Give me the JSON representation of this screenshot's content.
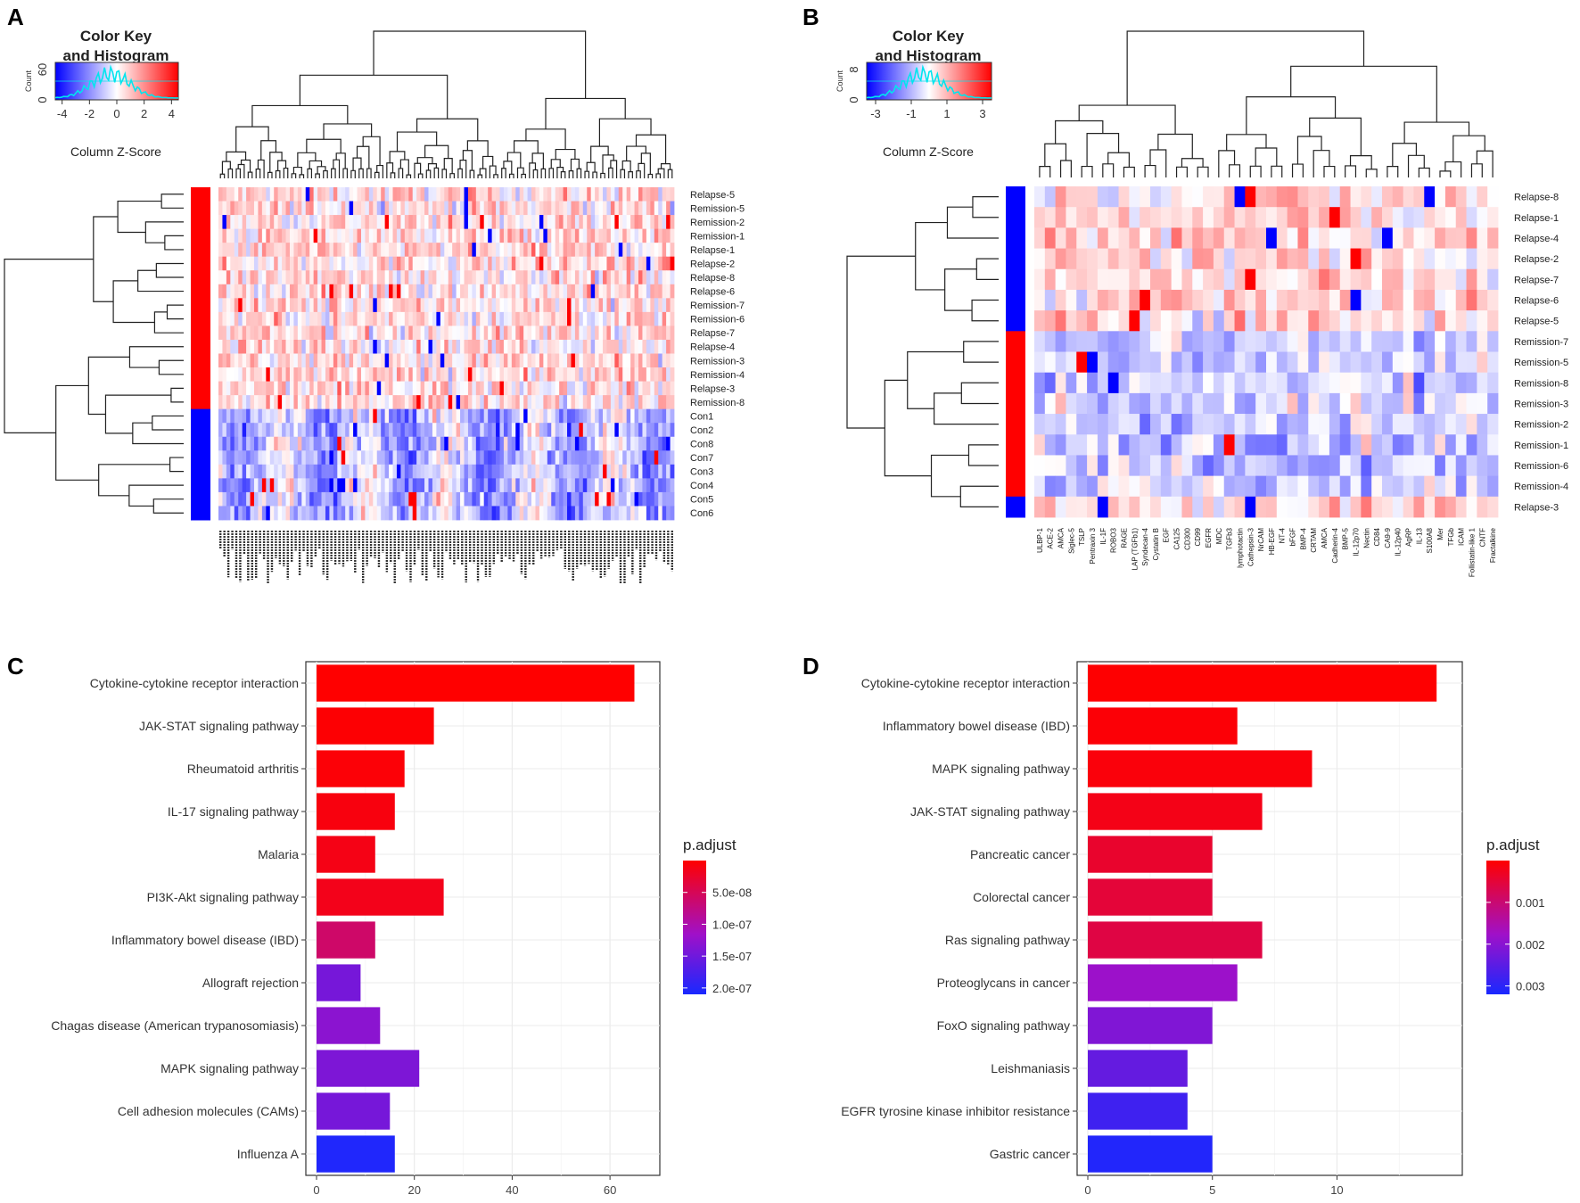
{
  "panels": {
    "a": "A",
    "b": "B",
    "c": "C",
    "d": "D"
  },
  "color_key": {
    "title_line1": "Color Key",
    "title_line2": "and Histogram",
    "subtitle": "Column Z-Score",
    "count_label": "Count"
  },
  "chart_data": [
    {
      "type": "heatmap",
      "panel": "A",
      "color_key_ticks": [
        "-4",
        "-2",
        "0",
        "2",
        "4"
      ],
      "color_key_count_ticks": [
        "0",
        "60"
      ],
      "zlim": [
        -4,
        4
      ],
      "rows": [
        "Relapse-5",
        "Remission-5",
        "Remission-2",
        "Remission-1",
        "Relapse-1",
        "Relapse-2",
        "Relapse-8",
        "Relapse-6",
        "Remission-7",
        "Remission-6",
        "Relapse-7",
        "Relapse-4",
        "Remission-3",
        "Remission-4",
        "Relapse-3",
        "Remission-8",
        "Con1",
        "Con2",
        "Con8",
        "Con7",
        "Con3",
        "Con4",
        "Con5",
        "Con6"
      ],
      "row_groups": [
        "red",
        "red",
        "red",
        "red",
        "red",
        "red",
        "red",
        "red",
        "red",
        "red",
        "red",
        "red",
        "red",
        "red",
        "red",
        "red",
        "blue",
        "blue",
        "blue",
        "blue",
        "blue",
        "blue",
        "blue",
        "blue"
      ],
      "n_columns": 115,
      "column_labels_note": ""
    },
    {
      "type": "heatmap",
      "panel": "B",
      "color_key_ticks": [
        "-3",
        "-1",
        "1",
        "3"
      ],
      "color_key_count_ticks": [
        "0",
        "8"
      ],
      "zlim": [
        -3,
        3
      ],
      "rows": [
        "Relapse-8",
        "Relapse-1",
        "Relapse-4",
        "Relapse-2",
        "Relapse-7",
        "Relapse-6",
        "Relapse-5",
        "Remission-7",
        "Remission-5",
        "Remission-8",
        "Remission-3",
        "Remission-2",
        "Remission-1",
        "Remission-6",
        "Remission-4",
        "Relapse-3"
      ],
      "row_groups": [
        "blue",
        "blue",
        "blue",
        "blue",
        "blue",
        "blue",
        "blue",
        "red",
        "red",
        "red",
        "red",
        "red",
        "red",
        "red",
        "red",
        "blue"
      ],
      "columns": [
        "ULBP-1",
        "ACE-2",
        "AMCA",
        "Siglec-5",
        "TSLP",
        "Pentraxin 3",
        "IL-1F",
        "ROBO3",
        "RAGE",
        "LAP (TGFb1)",
        "Syndecan-4",
        "Cystatin B",
        "EGF",
        "CA125",
        "CD300",
        "CD99",
        "EGFR",
        "MDC",
        "TGFb3",
        "lymphotactin",
        "Cathepsin-3",
        "NrCAM",
        "HB-EGF",
        "NT-4",
        "bFGF",
        "BMP-4",
        "CRTAM",
        "AMCA",
        "Cadherin-4",
        "BMP-5",
        "IL-12p70",
        "Nectin",
        "CD84",
        "CA9-9",
        "IL-12p40",
        "AgRP",
        "IL-13",
        "S100A8",
        "Mer",
        "TFGb",
        "ICAM",
        "Follistatin-like 1",
        "CNTF",
        "Fractalkine"
      ]
    },
    {
      "type": "bar",
      "panel": "C",
      "orientation": "horizontal",
      "categories": [
        "Cytokine-cytokine receptor interaction",
        "JAK-STAT signaling pathway",
        "Rheumatoid arthritis",
        "IL-17 signaling pathway",
        "Malaria",
        "PI3K-Akt signaling pathway",
        "Inflammatory bowel disease (IBD)",
        "Allograft rejection",
        "Chagas disease (American trypanosomiasis)",
        "MAPK signaling pathway",
        "Cell adhesion molecules (CAMs)",
        "Influenza A"
      ],
      "values": [
        65,
        24,
        18,
        16,
        12,
        26,
        12,
        9,
        13,
        21,
        15,
        16
      ],
      "p_adjust": [
        1e-10,
        2e-09,
        4e-09,
        8e-09,
        1.2e-08,
        1.5e-08,
        6e-08,
        1.45e-07,
        1.3e-07,
        1.4e-07,
        1.45e-07,
        2.05e-07
      ],
      "xlim": [
        0,
        68
      ],
      "xticks": [
        "0",
        "20",
        "40",
        "60"
      ],
      "legend_title": "p.adjust",
      "legend_ticks": [
        "5.0e-08",
        "1.0e-07",
        "1.5e-07",
        "2.0e-07"
      ],
      "legend_range": [
        0,
        2.1e-07
      ]
    },
    {
      "type": "bar",
      "panel": "D",
      "orientation": "horizontal",
      "categories": [
        "Cytokine-cytokine receptor interaction",
        "Inflammatory bowel disease (IBD)",
        "MAPK signaling pathway",
        "JAK-STAT signaling pathway",
        "Pancreatic cancer",
        "Colorectal cancer",
        "Ras signaling pathway",
        "Proteoglycans in cancer",
        "FoxO signaling pathway",
        "Leishmaniasis",
        "EGFR tyrosine kinase inhibitor resistance",
        "Gastric cancer"
      ],
      "values": [
        14,
        6,
        9,
        7,
        5,
        5,
        7,
        6,
        5,
        4,
        4,
        5
      ],
      "p_adjust": [
        1e-05,
        5e-05,
        0.0001,
        0.0002,
        0.0004,
        0.0005,
        0.0006,
        0.0018,
        0.0021,
        0.0024,
        0.0028,
        0.0031
      ],
      "xlim": [
        0,
        14.6
      ],
      "xticks": [
        "0",
        "5",
        "10"
      ],
      "legend_title": "p.adjust",
      "legend_ticks": [
        "0.001",
        "0.002",
        "0.003"
      ],
      "legend_range": [
        0,
        0.0032
      ]
    }
  ]
}
